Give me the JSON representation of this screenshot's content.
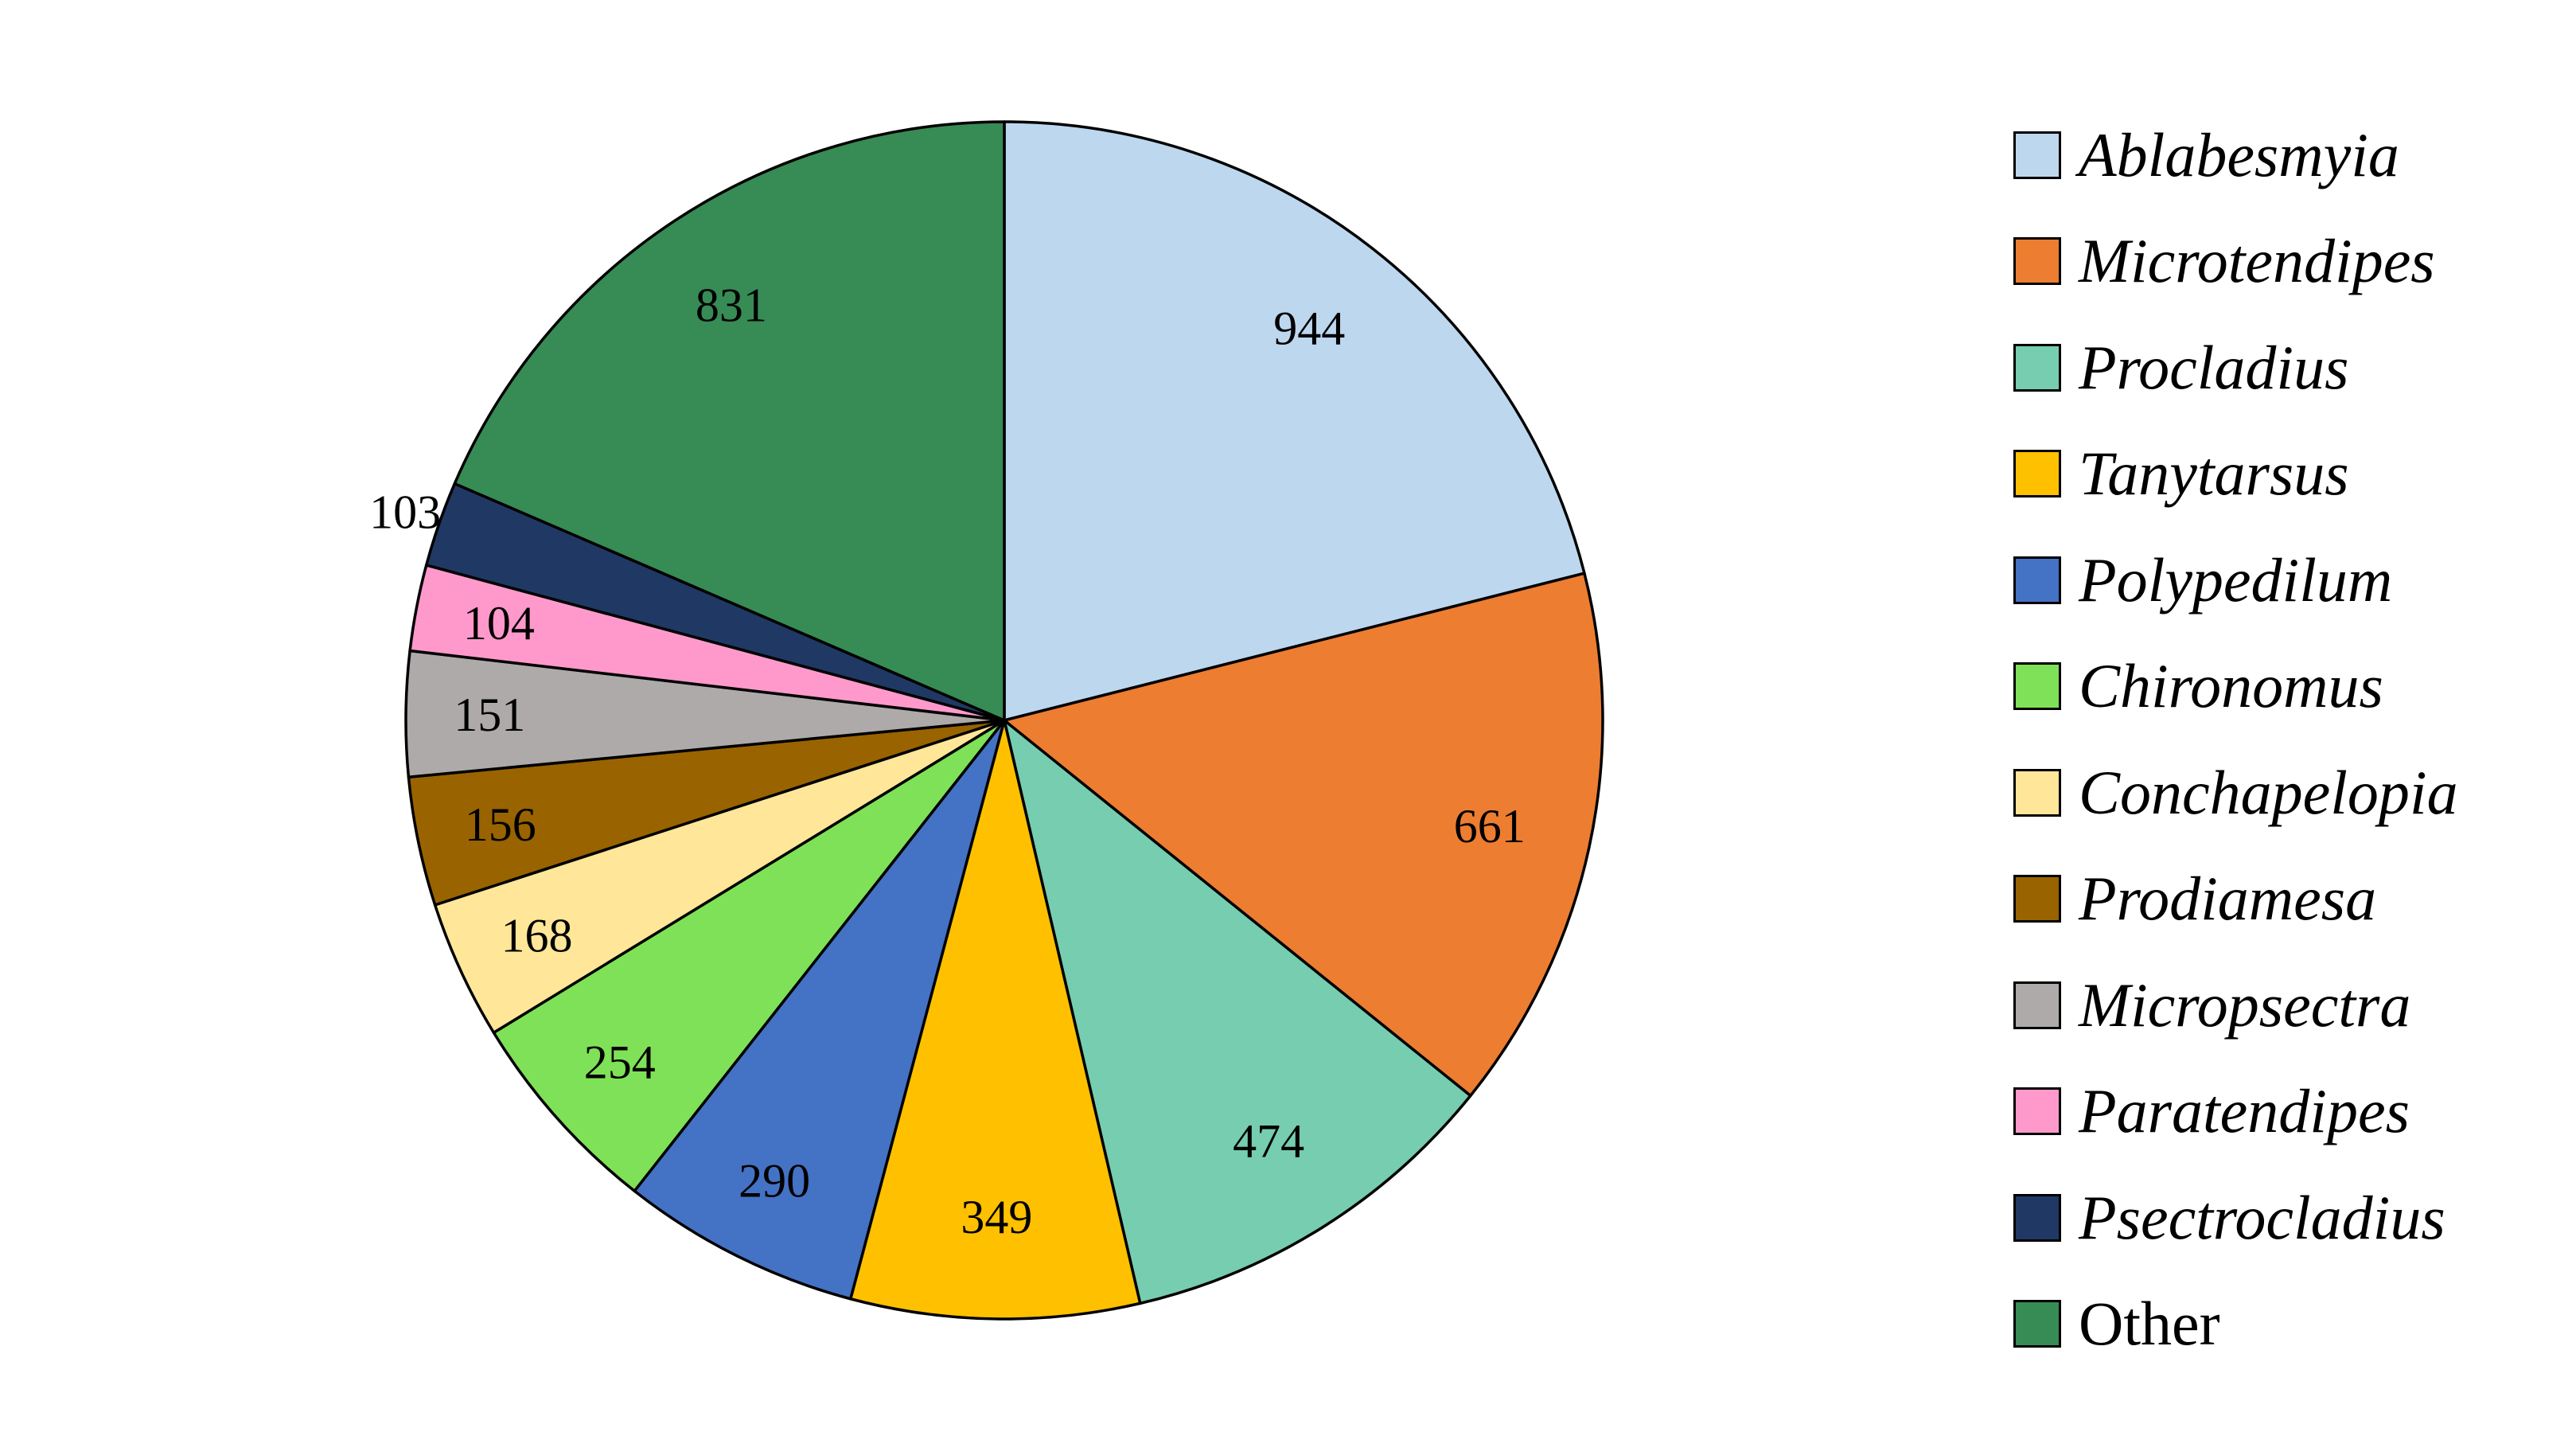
{
  "chart_data": {
    "type": "pie",
    "start": "top, clockwise",
    "slices": [
      {
        "label": "Ablabesmyia",
        "value": 944,
        "color": "#BDD7EE",
        "italic": true
      },
      {
        "label": "Microtendipes",
        "value": 661,
        "color": "#ED7D31",
        "italic": true
      },
      {
        "label": "Procladius",
        "value": 474,
        "color": "#76CDB0",
        "italic": true
      },
      {
        "label": "Tanytarsus",
        "value": 349,
        "color": "#FFC000",
        "italic": true
      },
      {
        "label": "Polypedilum",
        "value": 290,
        "color": "#4472C4",
        "italic": true
      },
      {
        "label": "Chironomus",
        "value": 254,
        "color": "#7FE157",
        "italic": true
      },
      {
        "label": "Conchapelopia",
        "value": 168,
        "color": "#FFE699",
        "italic": true
      },
      {
        "label": "Prodiamesa",
        "value": 156,
        "color": "#996300",
        "italic": true
      },
      {
        "label": "Micropsectra",
        "value": 151,
        "color": "#AEAAAA",
        "italic": true
      },
      {
        "label": "Paratendipes",
        "value": 104,
        "color": "#FF99CC",
        "italic": true
      },
      {
        "label": "Psectrocladius",
        "value": 103,
        "color": "#203864",
        "italic": true
      },
      {
        "label": "Other",
        "value": 831,
        "color": "#378B55",
        "italic": false
      }
    ],
    "legend_position": "right"
  }
}
